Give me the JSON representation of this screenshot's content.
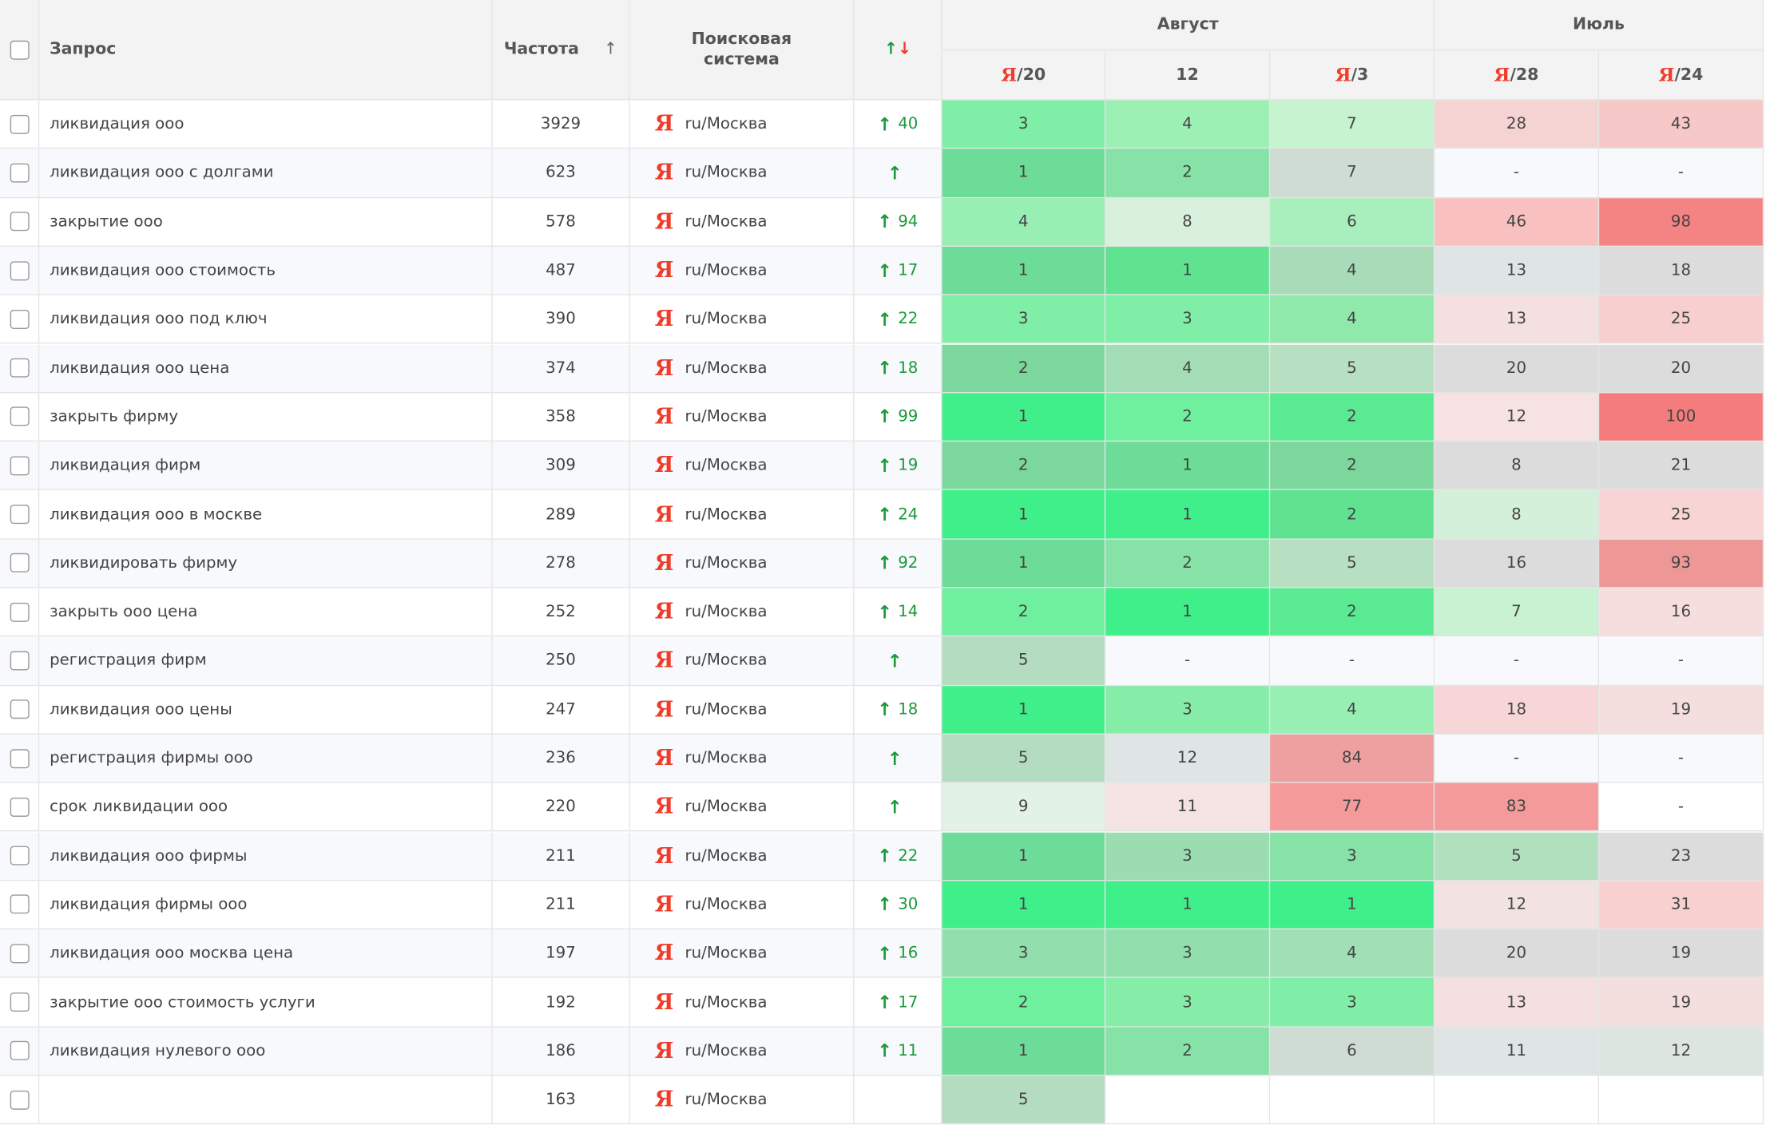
{
  "header": {
    "query": "Запрос",
    "frequency": "Частота",
    "engine": "Поисковая система",
    "groups": [
      "Август",
      "Июль"
    ],
    "columns": [
      {
        "engine": "Я",
        "label": "/20"
      },
      {
        "label": "12"
      },
      {
        "engine": "Я",
        "label": "/3"
      },
      {
        "engine": "Я",
        "label": "/28"
      },
      {
        "engine": "Я",
        "label": "/24"
      }
    ]
  },
  "rows": [
    {
      "query": "ликвидация ооо",
      "frequency": 3929,
      "engine": "Я",
      "region": "ru/Москва",
      "change": 40,
      "positions": [
        3,
        4,
        7,
        28,
        43
      ],
      "colors": [
        "#7feea6",
        "#9df0b4",
        "#c6f4d0",
        "#f6d3d3",
        "#f7c8c8"
      ]
    },
    {
      "query": "ликвидация ооо с долгами",
      "frequency": 623,
      "engine": "Я",
      "region": "ru/Москва",
      "change": null,
      "positions": [
        1,
        2,
        7,
        "-",
        "-"
      ],
      "colors": [
        "#6ddc98",
        "#86e2a6",
        "#cfdcd3",
        "#f7f9fc",
        "#f7f9fc"
      ]
    },
    {
      "query": "закрытие ооо",
      "frequency": 578,
      "engine": "Я",
      "region": "ru/Москва",
      "change": 94,
      "positions": [
        4,
        8,
        6,
        46,
        98
      ],
      "colors": [
        "#98efb3",
        "#d8f0dc",
        "#a9efbe",
        "#f9c0c0",
        "#f48383"
      ]
    },
    {
      "query": "ликвидация ооо стоимость",
      "frequency": 487,
      "engine": "Я",
      "region": "ru/Москва",
      "change": 17,
      "positions": [
        1,
        1,
        4,
        13,
        18
      ],
      "colors": [
        "#6ddc98",
        "#5fe391",
        "#a8dbb8",
        "#dfe5e5",
        "#dcdcdc"
      ]
    },
    {
      "query": "ликвидация ооо под ключ",
      "frequency": 390,
      "engine": "Я",
      "region": "ru/Москва",
      "change": 22,
      "positions": [
        3,
        3,
        4,
        13,
        25
      ],
      "colors": [
        "#7feea6",
        "#7feea6",
        "#8fe9aa",
        "#f4e0e0",
        "#f8cfcf"
      ]
    },
    {
      "query": "ликвидация ооо цена",
      "frequency": 374,
      "engine": "Я",
      "region": "ru/Москва",
      "change": 18,
      "positions": [
        2,
        4,
        5,
        20,
        20
      ],
      "colors": [
        "#7cd79c",
        "#a3ddb5",
        "#b7e0c3",
        "#dcdcdc",
        "#dcdcdc"
      ]
    },
    {
      "query": "закрыть фирму",
      "frequency": 358,
      "engine": "Я",
      "region": "ru/Москва",
      "change": 99,
      "positions": [
        1,
        2,
        2,
        12,
        100
      ],
      "colors": [
        "#3ff08a",
        "#6ff09e",
        "#5aea92",
        "#f6e2e2",
        "#f47c7c"
      ]
    },
    {
      "query": "ликвидация фирм",
      "frequency": 309,
      "engine": "Я",
      "region": "ru/Москва",
      "change": 19,
      "positions": [
        2,
        1,
        2,
        8,
        21
      ],
      "colors": [
        "#7cd79c",
        "#6ddc98",
        "#7cd79c",
        "#dcdcdc",
        "#dcdcdc"
      ]
    },
    {
      "query": "ликвидация ооо в москве",
      "frequency": 289,
      "engine": "Я",
      "region": "ru/Москва",
      "change": 24,
      "positions": [
        1,
        1,
        2,
        8,
        25
      ],
      "colors": [
        "#3ff08a",
        "#3ff08a",
        "#5fe391",
        "#d4f0da",
        "#f8d4d4"
      ]
    },
    {
      "query": "ликвидировать фирму",
      "frequency": 278,
      "engine": "Я",
      "region": "ru/Москва",
      "change": 92,
      "positions": [
        1,
        2,
        5,
        16,
        93
      ],
      "colors": [
        "#6ddc98",
        "#86e2a6",
        "#b7e0c3",
        "#dcdcdc",
        "#ee9797"
      ]
    },
    {
      "query": "закрыть ооо цена",
      "frequency": 252,
      "engine": "Я",
      "region": "ru/Москва",
      "change": 14,
      "positions": [
        2,
        1,
        2,
        7,
        16
      ],
      "colors": [
        "#6ff09e",
        "#3ff08a",
        "#5aea92",
        "#c8f2d2",
        "#f7dede"
      ]
    },
    {
      "query": "регистрация фирм",
      "frequency": 250,
      "engine": "Я",
      "region": "ru/Москва",
      "change": null,
      "positions": [
        5,
        "-",
        "-",
        "-",
        "-"
      ],
      "colors": [
        "#b4dcc0",
        "#f7f9fc",
        "#f7f9fc",
        "#f7f9fc",
        "#f7f9fc"
      ]
    },
    {
      "query": "ликвидация ооо цены",
      "frequency": 247,
      "engine": "Я",
      "region": "ru/Москва",
      "change": 18,
      "positions": [
        1,
        3,
        4,
        18,
        19
      ],
      "colors": [
        "#3ff08a",
        "#86eda8",
        "#98efb3",
        "#f6d6d6",
        "#f5dede"
      ]
    },
    {
      "query": "регистрация фирмы ооо",
      "frequency": 236,
      "engine": "Я",
      "region": "ru/Москва",
      "change": null,
      "positions": [
        5,
        12,
        84,
        "-",
        "-"
      ],
      "colors": [
        "#b4dcc0",
        "#dfe5e5",
        "#ee9f9f",
        "#f7f9fc",
        "#f7f9fc"
      ]
    },
    {
      "query": "срок ликвидации ооо",
      "frequency": 220,
      "engine": "Я",
      "region": "ru/Москва",
      "change": null,
      "positions": [
        9,
        11,
        77,
        83,
        "-"
      ],
      "colors": [
        "#e3f2e6",
        "#f5e3e3",
        "#f59a9a",
        "#f59a9a",
        "#ffffff"
      ]
    },
    {
      "query": "ликвидация ооо фирмы",
      "frequency": 211,
      "engine": "Я",
      "region": "ru/Москва",
      "change": 22,
      "positions": [
        1,
        3,
        3,
        5,
        23
      ],
      "colors": [
        "#6ddc98",
        "#9bdcb0",
        "#86e2a6",
        "#b1e0bf",
        "#dcdcdc"
      ]
    },
    {
      "query": "ликвидация фирмы ооо",
      "frequency": 211,
      "engine": "Я",
      "region": "ru/Москва",
      "change": 30,
      "positions": [
        1,
        1,
        1,
        12,
        31
      ],
      "colors": [
        "#3ff08a",
        "#3ff08a",
        "#3ff08a",
        "#f3e2e2",
        "#f8d0d0"
      ]
    },
    {
      "query": "ликвидация ооо москва цена",
      "frequency": 197,
      "engine": "Я",
      "region": "ru/Москва",
      "change": 16,
      "positions": [
        3,
        3,
        4,
        20,
        19
      ],
      "colors": [
        "#90dfac",
        "#90dfac",
        "#a1dfb5",
        "#dcdcdc",
        "#dcdcdc"
      ]
    },
    {
      "query": "закрытие ооо стоимость услуги",
      "frequency": 192,
      "engine": "Я",
      "region": "ru/Москва",
      "change": 17,
      "positions": [
        2,
        3,
        3,
        13,
        19
      ],
      "colors": [
        "#6ff09e",
        "#86eda8",
        "#7feea6",
        "#f4e0e0",
        "#f5dede"
      ]
    },
    {
      "query": "ликвидация нулевого ооо",
      "frequency": 186,
      "engine": "Я",
      "region": "ru/Москва",
      "change": 11,
      "positions": [
        1,
        2,
        6,
        11,
        12
      ],
      "colors": [
        "#6ddc98",
        "#86e2a6",
        "#cfdcd3",
        "#dfe5e5",
        "#dde5e1"
      ]
    },
    {
      "frequency": 163,
      "engine": "Я",
      "region": "ru/Москва",
      "positions": [
        5
      ],
      "colors": [
        "#b4dcc0"
      ]
    }
  ]
}
